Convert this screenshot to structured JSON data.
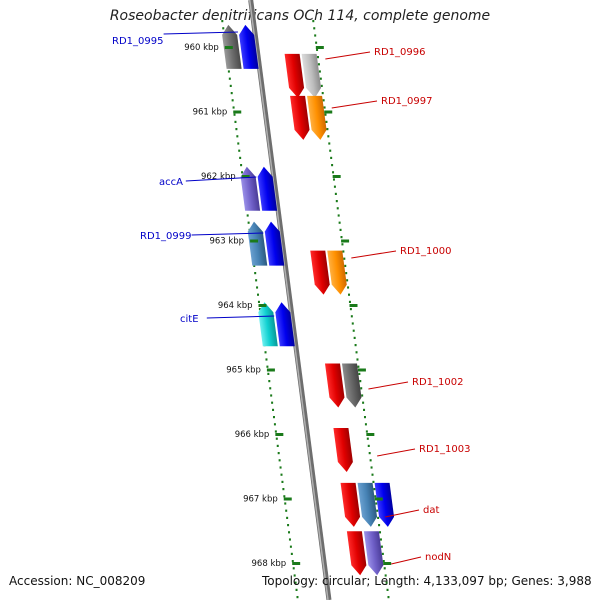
{
  "title": "Roseobacter denitrificans OCh 114, complete genome",
  "accession_label": "Accession: NC_008209",
  "summary_label": "Topology: circular; Length: 4,133,097 bp; Genes: 3,988",
  "colors": {
    "backbone": "#8a8a8a",
    "tick": "#1a7a1a",
    "label_left": "#0000c8",
    "label_right": "#c80000"
  },
  "kbp_ticks": [
    "960 kbp",
    "961 kbp",
    "962 kbp",
    "963 kbp",
    "964 kbp",
    "965 kbp",
    "966 kbp",
    "967 kbp",
    "968 kbp"
  ],
  "left_labels": [
    "RD1_0995",
    "accA",
    "RD1_0999",
    "citE"
  ],
  "right_labels": [
    "RD1_0996",
    "RD1_0997",
    "RD1_1000",
    "RD1_1002",
    "RD1_1003",
    "dat",
    "nodN"
  ],
  "genes": [
    {
      "strand": "left",
      "color": "gray",
      "kbp": 959.75
    },
    {
      "strand": "left",
      "color": "blue",
      "kbp": 959.75
    },
    {
      "strand": "right",
      "color": "red",
      "kbp": 960.2
    },
    {
      "strand": "right",
      "color": "lightgray",
      "kbp": 960.2
    },
    {
      "strand": "right",
      "color": "red",
      "kbp": 960.85
    },
    {
      "strand": "right",
      "color": "orange",
      "kbp": 960.85
    },
    {
      "strand": "left",
      "color": "slate",
      "kbp": 961.95
    },
    {
      "strand": "left",
      "color": "blue",
      "kbp": 961.95
    },
    {
      "strand": "left",
      "color": "steel",
      "kbp": 962.8
    },
    {
      "strand": "left",
      "color": "blue",
      "kbp": 962.8
    },
    {
      "strand": "right",
      "color": "red",
      "kbp": 963.25
    },
    {
      "strand": "right",
      "color": "orange",
      "kbp": 963.25
    },
    {
      "strand": "left",
      "color": "cyan",
      "kbp": 964.05
    },
    {
      "strand": "left",
      "color": "blue",
      "kbp": 964.05
    },
    {
      "strand": "right",
      "color": "red",
      "kbp": 965.0
    },
    {
      "strand": "right",
      "color": "darkgray",
      "kbp": 965.0
    },
    {
      "strand": "right",
      "color": "red",
      "kbp": 966.0
    },
    {
      "strand": "right",
      "color": "red",
      "kbp": 966.85
    },
    {
      "strand": "right",
      "color": "steel",
      "kbp": 966.85
    },
    {
      "strand": "right",
      "color": "blue",
      "kbp": 966.85
    },
    {
      "strand": "right",
      "color": "red",
      "kbp": 967.6
    },
    {
      "strand": "right",
      "color": "slate",
      "kbp": 967.6
    }
  ]
}
